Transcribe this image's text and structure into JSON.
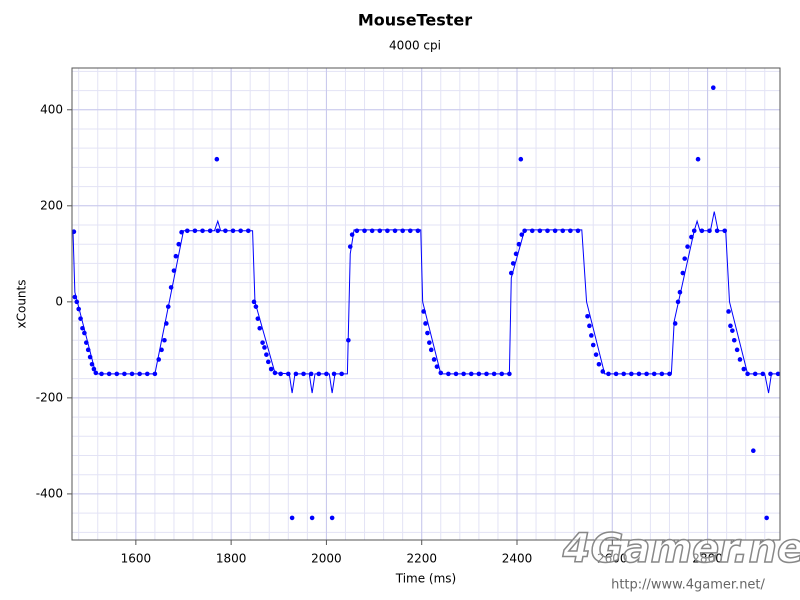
{
  "chart_data": {
    "type": "line",
    "title": "MouseTester",
    "subtitle": "4000 cpi",
    "x_label": "Time (ms)",
    "y_label": "xCounts",
    "watermark": "4Gamer.net",
    "watermark_url": "http://www.4gamer.net/",
    "xlim": [
      1466,
      2952
    ],
    "ylim": [
      -496,
      487
    ],
    "xticks": [
      1600,
      1800,
      2000,
      2200,
      2400,
      2600,
      2800
    ],
    "yticks": [
      -400,
      -200,
      0,
      200,
      400
    ],
    "grid": true,
    "minor_grid_divisions": 5,
    "series": [
      {
        "color": "#0000ff",
        "markers": true,
        "line": false,
        "x": [
          1470,
          1472,
          1476,
          1480,
          1484,
          1488,
          1492,
          1496,
          1500,
          1504,
          1508,
          1512,
          1516,
          1528,
          1544,
          1560,
          1576,
          1592,
          1608,
          1624,
          1640,
          1648,
          1654,
          1660,
          1664,
          1668,
          1674,
          1680,
          1684,
          1690,
          1696,
          1708,
          1724,
          1740,
          1756,
          1770,
          1772,
          1788,
          1804,
          1820,
          1836,
          1848,
          1852,
          1856,
          1860,
          1866,
          1870,
          1874,
          1878,
          1884,
          1892,
          1904,
          1920,
          1928,
          1936,
          1952,
          1968,
          1970,
          1984,
          2000,
          2012,
          2016,
          2032,
          2046,
          2050,
          2054,
          2064,
          2080,
          2096,
          2112,
          2128,
          2144,
          2160,
          2176,
          2192,
          2204,
          2208,
          2212,
          2216,
          2220,
          2226,
          2232,
          2240,
          2256,
          2272,
          2288,
          2304,
          2320,
          2336,
          2352,
          2368,
          2384,
          2388,
          2392,
          2398,
          2404,
          2408,
          2410,
          2416,
          2432,
          2448,
          2464,
          2480,
          2496,
          2512,
          2528,
          2548,
          2552,
          2556,
          2560,
          2566,
          2572,
          2580,
          2592,
          2608,
          2624,
          2640,
          2656,
          2672,
          2688,
          2704,
          2720,
          2732,
          2738,
          2742,
          2748,
          2752,
          2758,
          2766,
          2772,
          2780,
          2788,
          2804,
          2812,
          2820,
          2836,
          2844,
          2848,
          2852,
          2856,
          2862,
          2868,
          2876,
          2884,
          2896,
          2900,
          2916,
          2924,
          2932,
          2948
        ],
        "values": [
          146,
          10,
          0,
          -15,
          -35,
          -55,
          -65,
          -85,
          -100,
          -115,
          -130,
          -140,
          -148,
          -150,
          -150,
          -150,
          -150,
          -150,
          -150,
          -150,
          -150,
          -120,
          -100,
          -80,
          -45,
          -10,
          30,
          65,
          95,
          120,
          145,
          148,
          148,
          148,
          148,
          297,
          148,
          148,
          148,
          148,
          148,
          0,
          -10,
          -35,
          -55,
          -85,
          -95,
          -110,
          -125,
          -140,
          -148,
          -150,
          -150,
          -450,
          -150,
          -150,
          -150,
          -450,
          -150,
          -150,
          -450,
          -150,
          -150,
          -80,
          115,
          140,
          148,
          148,
          148,
          148,
          148,
          148,
          148,
          148,
          148,
          -20,
          -45,
          -65,
          -85,
          -100,
          -120,
          -135,
          -148,
          -150,
          -150,
          -150,
          -150,
          -150,
          -150,
          -150,
          -150,
          -150,
          60,
          80,
          100,
          120,
          297,
          140,
          148,
          148,
          148,
          148,
          148,
          148,
          148,
          148,
          -30,
          -50,
          -70,
          -90,
          -110,
          -130,
          -145,
          -150,
          -150,
          -150,
          -150,
          -150,
          -150,
          -150,
          -150,
          -150,
          -45,
          0,
          20,
          60,
          90,
          115,
          135,
          148,
          297,
          148,
          148,
          446,
          148,
          148,
          -20,
          -50,
          -60,
          -80,
          -100,
          -120,
          -140,
          -150,
          -310,
          -150,
          -150,
          -450,
          -150,
          -150
        ]
      },
      {
        "color": "#0000ff",
        "markers": false,
        "line": true,
        "x": [
          1468,
          1472,
          1516,
          1640,
          1700,
          1765,
          1772,
          1778,
          1845,
          1850,
          1892,
          1922,
          1928,
          1934,
          1964,
          1970,
          1976,
          2006,
          2012,
          2018,
          2044,
          2050,
          2058,
          2198,
          2202,
          2240,
          2384,
          2388,
          2416,
          2536,
          2546,
          2584,
          2724,
          2730,
          2772,
          2778,
          2784,
          2806,
          2814,
          2822,
          2838,
          2846,
          2884,
          2920,
          2928,
          2934,
          2950
        ],
        "values": [
          150,
          20,
          -150,
          -150,
          148,
          148,
          168,
          148,
          148,
          0,
          -148,
          -150,
          -190,
          -150,
          -150,
          -190,
          -150,
          -150,
          -190,
          -150,
          -150,
          100,
          150,
          150,
          0,
          -150,
          -150,
          50,
          150,
          150,
          0,
          -150,
          -150,
          -40,
          148,
          168,
          148,
          148,
          188,
          148,
          148,
          0,
          -150,
          -150,
          -190,
          -150,
          -150
        ]
      }
    ]
  }
}
